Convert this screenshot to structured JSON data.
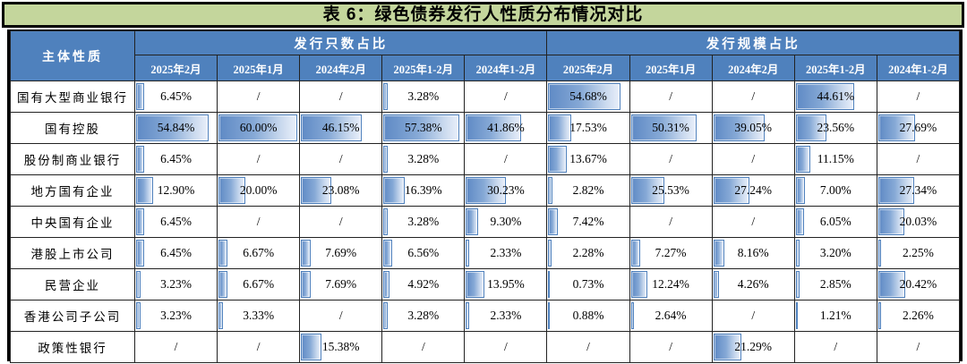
{
  "title": "表 6：绿色债券发行人性质分布情况对比",
  "colors": {
    "title_bg": "#c4d69c",
    "header_bg": "#4f81bd",
    "header_text": "#ffffff",
    "bar_fill_start": "#5f8ac5",
    "bar_fill_end": "#e9effa",
    "bar_border": "#4f81bd",
    "grid_border": "#222222",
    "outer_border": "#000000"
  },
  "table": {
    "corner_header": "主体性质",
    "groups": [
      {
        "label": "发行只数占比"
      },
      {
        "label": "发行规模占比"
      }
    ],
    "periods": [
      "2025年2月",
      "2025年1月",
      "2024年2月",
      "2025年1-2月",
      "2024年1-2月"
    ],
    "bar_scale_max": 62,
    "rows": [
      {
        "label": "国有大型商业银行",
        "count_share": [
          "6.45%",
          "/",
          "/",
          "3.28%",
          "/"
        ],
        "scale_share": [
          "54.68%",
          "/",
          "/",
          "44.61%",
          "/"
        ]
      },
      {
        "label": "国有控股",
        "count_share": [
          "54.84%",
          "60.00%",
          "46.15%",
          "57.38%",
          "41.86%"
        ],
        "scale_share": [
          "17.53%",
          "50.31%",
          "39.05%",
          "23.56%",
          "27.69%"
        ]
      },
      {
        "label": "股份制商业银行",
        "count_share": [
          "6.45%",
          "/",
          "/",
          "3.28%",
          "/"
        ],
        "scale_share": [
          "13.67%",
          "/",
          "/",
          "11.15%",
          "/"
        ]
      },
      {
        "label": "地方国有企业",
        "count_share": [
          "12.90%",
          "20.00%",
          "23.08%",
          "16.39%",
          "30.23%"
        ],
        "scale_share": [
          "2.82%",
          "25.53%",
          "27.24%",
          "7.00%",
          "27.34%"
        ]
      },
      {
        "label": "中央国有企业",
        "count_share": [
          "6.45%",
          "/",
          "/",
          "3.28%",
          "9.30%"
        ],
        "scale_share": [
          "7.42%",
          "/",
          "/",
          "6.05%",
          "20.03%"
        ]
      },
      {
        "label": "港股上市公司",
        "count_share": [
          "6.45%",
          "6.67%",
          "7.69%",
          "6.56%",
          "2.33%"
        ],
        "scale_share": [
          "2.28%",
          "7.27%",
          "8.16%",
          "3.20%",
          "2.25%"
        ]
      },
      {
        "label": "民营企业",
        "count_share": [
          "3.23%",
          "6.67%",
          "7.69%",
          "4.92%",
          "13.95%"
        ],
        "scale_share": [
          "0.73%",
          "12.24%",
          "4.26%",
          "2.85%",
          "20.42%"
        ]
      },
      {
        "label": "香港公司子公司",
        "count_share": [
          "3.23%",
          "3.33%",
          "/",
          "3.28%",
          "2.33%"
        ],
        "scale_share": [
          "0.88%",
          "2.64%",
          "/",
          "1.21%",
          "2.26%"
        ]
      },
      {
        "label": "政策性银行",
        "count_share": [
          "/",
          "/",
          "15.38%",
          "/",
          "/"
        ],
        "scale_share": [
          "/",
          "/",
          "21.29%",
          "/",
          "/"
        ]
      }
    ]
  }
}
